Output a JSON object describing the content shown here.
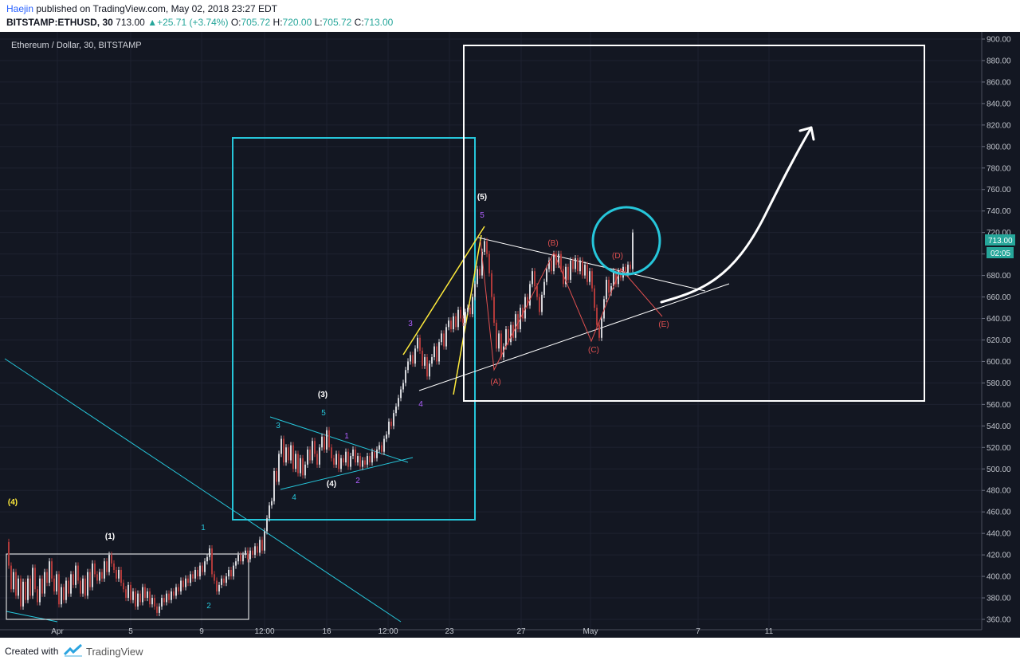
{
  "header": {
    "author": "Haejin",
    "published_text": "published on TradingView.com, May 02, 2018 23:27 EDT",
    "symbol": "BITSTAMP:ETHUSD, 30",
    "last_price": "713.00",
    "change": "+25.71 (+3.74%)",
    "open_label": "O:",
    "open": "705.72",
    "high_label": "H:",
    "high": "720.00",
    "low_label": "L:",
    "low": "705.72",
    "close_label": "C:",
    "close": "713.00"
  },
  "chart_data": {
    "type": "line",
    "title": "Ethereum / Dollar, 30, BITSTAMP",
    "ylim": [
      360,
      900
    ],
    "yticks": [
      360,
      380,
      400,
      420,
      440,
      460,
      480,
      500,
      520,
      540,
      560,
      580,
      600,
      620,
      640,
      660,
      680,
      700,
      720,
      740,
      760,
      780,
      800,
      820,
      840,
      860,
      880,
      900
    ],
    "x_tick_labels": [
      "Apr",
      "5",
      "9",
      "12:00",
      "16",
      "12:00",
      "23",
      "27",
      "May",
      "7",
      "11"
    ],
    "price_label": "713.00",
    "countdown_label": "02:05",
    "colors": {
      "background": "#131722",
      "up": "#d5d6da",
      "down": "#b03a3a",
      "cyan": "#26c6da",
      "white": "#ffffff",
      "yellow": "#ffeb3b",
      "red": "#e05050",
      "purple": "#b060ff",
      "price_tag": "#26a69a"
    },
    "series": [
      {
        "name": "",
        "points": [
          [
            0,
            432
          ],
          [
            3,
            410
          ],
          [
            6,
            388
          ],
          [
            9,
            404
          ],
          [
            12,
            382
          ],
          [
            15,
            398
          ],
          [
            18,
            372
          ],
          [
            21,
            395
          ],
          [
            24,
            378
          ],
          [
            27,
            398
          ],
          [
            30,
            382
          ],
          [
            33,
            408
          ],
          [
            36,
            388
          ],
          [
            39,
            376
          ],
          [
            42,
            398
          ],
          [
            45,
            384
          ],
          [
            48,
            404
          ],
          [
            51,
            394
          ],
          [
            54,
            414
          ],
          [
            57,
            398
          ],
          [
            60,
            386
          ],
          [
            63,
            402
          ],
          [
            66,
            374
          ],
          [
            69,
            390
          ],
          [
            72,
            378
          ],
          [
            75,
            396
          ],
          [
            78,
            384
          ],
          [
            81,
            402
          ],
          [
            84,
            392
          ],
          [
            87,
            410
          ],
          [
            90,
            396
          ],
          [
            93,
            384
          ],
          [
            96,
            398
          ],
          [
            99,
            382
          ],
          [
            102,
            404
          ],
          [
            105,
            390
          ],
          [
            108,
            412
          ],
          [
            111,
            402
          ],
          [
            114,
            396
          ],
          [
            117,
            404
          ],
          [
            120,
            398
          ],
          [
            123,
            414
          ],
          [
            126,
            404
          ],
          [
            129,
            420
          ],
          [
            132,
            412
          ],
          [
            135,
            406
          ],
          [
            138,
            398
          ],
          [
            141,
            406
          ],
          [
            144,
            394
          ],
          [
            147,
            388
          ],
          [
            150,
            380
          ],
          [
            153,
            392
          ],
          [
            156,
            378
          ],
          [
            159,
            386
          ],
          [
            162,
            372
          ],
          [
            165,
            384
          ],
          [
            168,
            376
          ],
          [
            171,
            390
          ],
          [
            174,
            380
          ],
          [
            177,
            386
          ],
          [
            180,
            374
          ],
          [
            183,
            380
          ],
          [
            186,
            372
          ],
          [
            189,
            366
          ],
          [
            192,
            372
          ],
          [
            195,
            380
          ],
          [
            198,
            376
          ],
          [
            201,
            384
          ],
          [
            204,
            378
          ],
          [
            207,
            386
          ],
          [
            210,
            382
          ],
          [
            213,
            390
          ],
          [
            216,
            386
          ],
          [
            219,
            396
          ],
          [
            222,
            390
          ],
          [
            225,
            398
          ],
          [
            228,
            394
          ],
          [
            231,
            402
          ],
          [
            234,
            398
          ],
          [
            237,
            406
          ],
          [
            240,
            400
          ],
          [
            243,
            410
          ],
          [
            246,
            404
          ],
          [
            249,
            414
          ],
          [
            252,
            418
          ],
          [
            255,
            426
          ],
          [
            258,
            402
          ],
          [
            261,
            396
          ],
          [
            264,
            386
          ],
          [
            267,
            392
          ],
          [
            270,
            398
          ],
          [
            273,
            394
          ],
          [
            276,
            400
          ],
          [
            279,
            406
          ],
          [
            282,
            400
          ],
          [
            285,
            410
          ],
          [
            288,
            414
          ],
          [
            291,
            420
          ],
          [
            294,
            414
          ],
          [
            297,
            420
          ],
          [
            300,
            424
          ],
          [
            303,
            416
          ],
          [
            306,
            424
          ],
          [
            309,
            420
          ],
          [
            312,
            428
          ],
          [
            315,
            422
          ],
          [
            318,
            434
          ],
          [
            321,
            424
          ],
          [
            324,
            442
          ],
          [
            327,
            454
          ],
          [
            330,
            466
          ],
          [
            333,
            470
          ],
          [
            336,
            498
          ],
          [
            339,
            488
          ],
          [
            342,
            514
          ],
          [
            345,
            528
          ],
          [
            348,
            506
          ],
          [
            351,
            520
          ],
          [
            354,
            508
          ],
          [
            357,
            522
          ],
          [
            360,
            500
          ],
          [
            363,
            514
          ],
          [
            366,
            496
          ],
          [
            369,
            510
          ],
          [
            372,
            494
          ],
          [
            375,
            504
          ],
          [
            378,
            518
          ],
          [
            381,
            508
          ],
          [
            384,
            526
          ],
          [
            387,
            514
          ],
          [
            390,
            504
          ],
          [
            393,
            520
          ],
          [
            396,
            530
          ],
          [
            399,
            518
          ],
          [
            402,
            536
          ],
          [
            405,
            520
          ],
          [
            408,
            510
          ],
          [
            411,
            504
          ],
          [
            414,
            514
          ],
          [
            417,
            500
          ],
          [
            420,
            510
          ],
          [
            423,
            506
          ],
          [
            426,
            516
          ],
          [
            429,
            502
          ],
          [
            432,
            512
          ],
          [
            435,
            518
          ],
          [
            438,
            506
          ],
          [
            441,
            512
          ],
          [
            444,
            502
          ],
          [
            447,
            508
          ],
          [
            450,
            504
          ],
          [
            453,
            512
          ],
          [
            456,
            506
          ],
          [
            459,
            516
          ],
          [
            462,
            510
          ],
          [
            465,
            518
          ],
          [
            468,
            522
          ],
          [
            471,
            516
          ],
          [
            474,
            528
          ],
          [
            477,
            532
          ],
          [
            480,
            544
          ],
          [
            483,
            540
          ],
          [
            486,
            552
          ],
          [
            489,
            558
          ],
          [
            492,
            566
          ],
          [
            495,
            574
          ],
          [
            498,
            580
          ],
          [
            501,
            592
          ],
          [
            504,
            600
          ],
          [
            507,
            606
          ],
          [
            510,
            598
          ],
          [
            513,
            612
          ],
          [
            516,
            622
          ],
          [
            519,
            610
          ],
          [
            522,
            596
          ],
          [
            525,
            604
          ],
          [
            528,
            586
          ],
          [
            531,
            598
          ],
          [
            534,
            604
          ],
          [
            537,
            614
          ],
          [
            540,
            600
          ],
          [
            543,
            618
          ],
          [
            546,
            626
          ],
          [
            549,
            614
          ],
          [
            552,
            632
          ],
          [
            555,
            638
          ],
          [
            558,
            630
          ],
          [
            561,
            642
          ],
          [
            564,
            632
          ],
          [
            567,
            648
          ],
          [
            570,
            640
          ],
          [
            573,
            636
          ],
          [
            576,
            646
          ],
          [
            579,
            650
          ],
          [
            582,
            644
          ],
          [
            585,
            660
          ],
          [
            588,
            672
          ],
          [
            591,
            686
          ],
          [
            594,
            680
          ],
          [
            597,
            702
          ],
          [
            600,
            712
          ],
          [
            603,
            700
          ],
          [
            606,
            682
          ],
          [
            609,
            660
          ],
          [
            612,
            636
          ],
          [
            615,
            612
          ],
          [
            618,
            626
          ],
          [
            621,
            604
          ],
          [
            624,
            614
          ],
          [
            627,
            630
          ],
          [
            630,
            618
          ],
          [
            633,
            634
          ],
          [
            636,
            622
          ],
          [
            639,
            644
          ],
          [
            642,
            630
          ],
          [
            645,
            650
          ],
          [
            648,
            640
          ],
          [
            651,
            660
          ],
          [
            654,
            652
          ],
          [
            657,
            672
          ],
          [
            660,
            684
          ],
          [
            663,
            670
          ],
          [
            666,
            660
          ],
          [
            669,
            646
          ],
          [
            672,
            662
          ],
          [
            675,
            674
          ],
          [
            678,
            686
          ],
          [
            681,
            694
          ],
          [
            684,
            684
          ],
          [
            687,
            700
          ],
          [
            690,
            690
          ],
          [
            693,
            700
          ],
          [
            696,
            686
          ],
          [
            699,
            672
          ],
          [
            702,
            688
          ],
          [
            705,
            676
          ],
          [
            708,
            694
          ],
          [
            711,
            686
          ],
          [
            714,
            696
          ],
          [
            717,
            684
          ],
          [
            720,
            694
          ],
          [
            723,
            680
          ],
          [
            726,
            690
          ],
          [
            729,
            674
          ],
          [
            732,
            684
          ],
          [
            735,
            668
          ],
          [
            738,
            650
          ],
          [
            741,
            634
          ],
          [
            744,
            622
          ],
          [
            747,
            640
          ],
          [
            750,
            658
          ],
          [
            753,
            676
          ],
          [
            756,
            664
          ],
          [
            759,
            670
          ],
          [
            762,
            684
          ],
          [
            765,
            672
          ],
          [
            768,
            684
          ],
          [
            771,
            678
          ],
          [
            774,
            688
          ],
          [
            777,
            682
          ],
          [
            780,
            690
          ],
          [
            783,
            686
          ],
          [
            786,
            720
          ]
        ]
      }
    ],
    "wave_labels": [
      {
        "text": "(4)",
        "color": "yellow"
      },
      {
        "text": "(1)",
        "color": "white"
      },
      {
        "text": "1",
        "color": "cyan"
      },
      {
        "text": "2",
        "color": "cyan"
      },
      {
        "text": "3",
        "color": "cyan"
      },
      {
        "text": "4",
        "color": "cyan"
      },
      {
        "text": "5",
        "color": "cyan"
      },
      {
        "text": "(3)",
        "color": "white"
      },
      {
        "text": "(4)",
        "color": "white"
      },
      {
        "text": "1",
        "color": "purple"
      },
      {
        "text": "2",
        "color": "purple"
      },
      {
        "text": "3",
        "color": "purple"
      },
      {
        "text": "4",
        "color": "purple"
      },
      {
        "text": "5",
        "color": "purple"
      },
      {
        "text": "(5)",
        "color": "white"
      },
      {
        "text": "(A)",
        "color": "red"
      },
      {
        "text": "(B)",
        "color": "red"
      },
      {
        "text": "(C)",
        "color": "red"
      },
      {
        "text": "(D)",
        "color": "red"
      },
      {
        "text": "(E)",
        "color": "red"
      }
    ]
  },
  "footer": {
    "created_with": "Created with",
    "brand": "TradingView"
  }
}
